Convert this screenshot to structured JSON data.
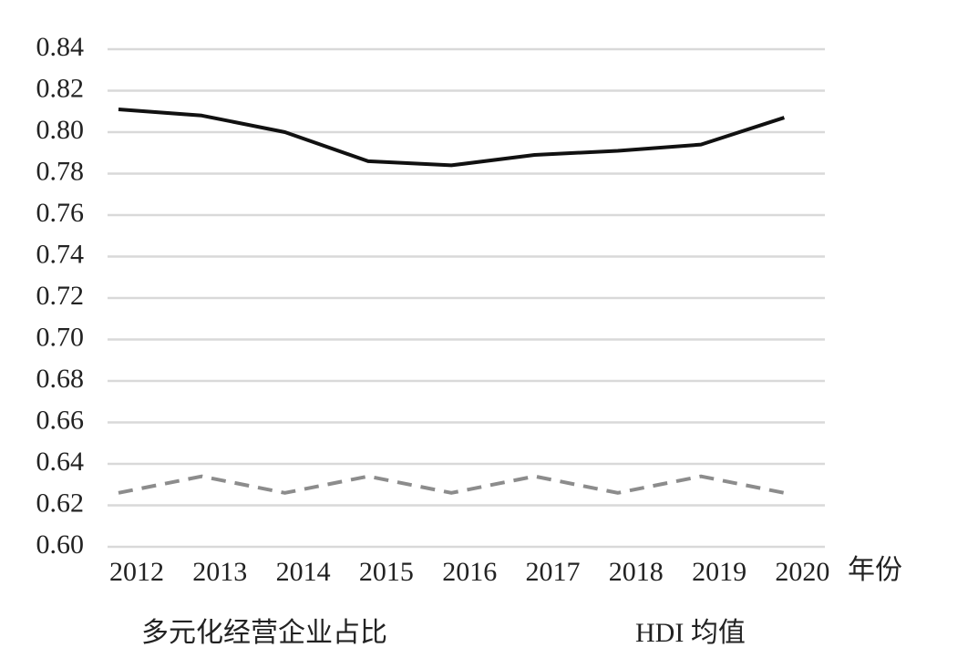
{
  "chart_data": {
    "type": "line",
    "x_label": "年份",
    "categories": [
      "2012",
      "2013",
      "2014",
      "2015",
      "2016",
      "2017",
      "2018",
      "2019",
      "2020"
    ],
    "series": [
      {
        "name": "多元化经营企业占比",
        "color": "#111111",
        "dashed": false,
        "values": [
          0.811,
          0.808,
          0.8,
          0.786,
          0.784,
          0.789,
          0.791,
          0.794,
          0.807
        ]
      },
      {
        "name": "HDI 均值",
        "color": "#8c8c8c",
        "dashed": true,
        "values": [
          0.626,
          0.634,
          0.626,
          0.634,
          0.626,
          0.634,
          0.626,
          0.634,
          0.626
        ]
      }
    ],
    "ylim": [
      0.6,
      0.84
    ],
    "yticks": [
      {
        "value": 0.6,
        "label": "0.60"
      },
      0.62,
      0.64,
      0.66,
      0.68,
      {
        "value": 0.7,
        "label": "0.70"
      },
      0.72,
      0.74,
      0.76,
      0.78,
      {
        "value": 0.8,
        "label": "0.80"
      },
      0.82,
      0.84
    ],
    "grid": true
  }
}
